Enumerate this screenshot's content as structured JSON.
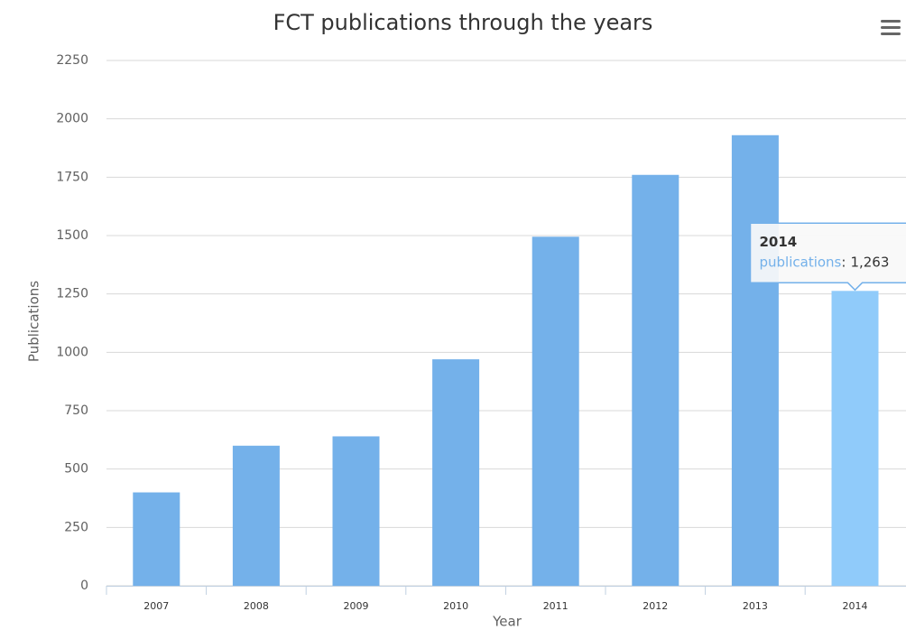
{
  "chart_data": {
    "type": "bar",
    "title": "FCT publications through the years",
    "x_label": "Year",
    "y_label": "Publications",
    "categories": [
      "2007",
      "2008",
      "2009",
      "2010",
      "2011",
      "2012",
      "2013",
      "2014"
    ],
    "series": [
      {
        "name": "publications",
        "color": "#74b1ea",
        "values": [
          400,
          600,
          640,
          970,
          1495,
          1760,
          1930,
          1263
        ],
        "value_labels": [
          null,
          null,
          null,
          null,
          null,
          null,
          null,
          "1,263"
        ]
      }
    ],
    "ylim": [
      0,
      2250
    ],
    "yticks": [
      0,
      250,
      500,
      750,
      1000,
      1250,
      1500,
      1750,
      2000,
      2250
    ],
    "grid": true,
    "tooltip": {
      "category_index": 7,
      "hover_color": "#90cbfa",
      "separator": ":"
    }
  }
}
